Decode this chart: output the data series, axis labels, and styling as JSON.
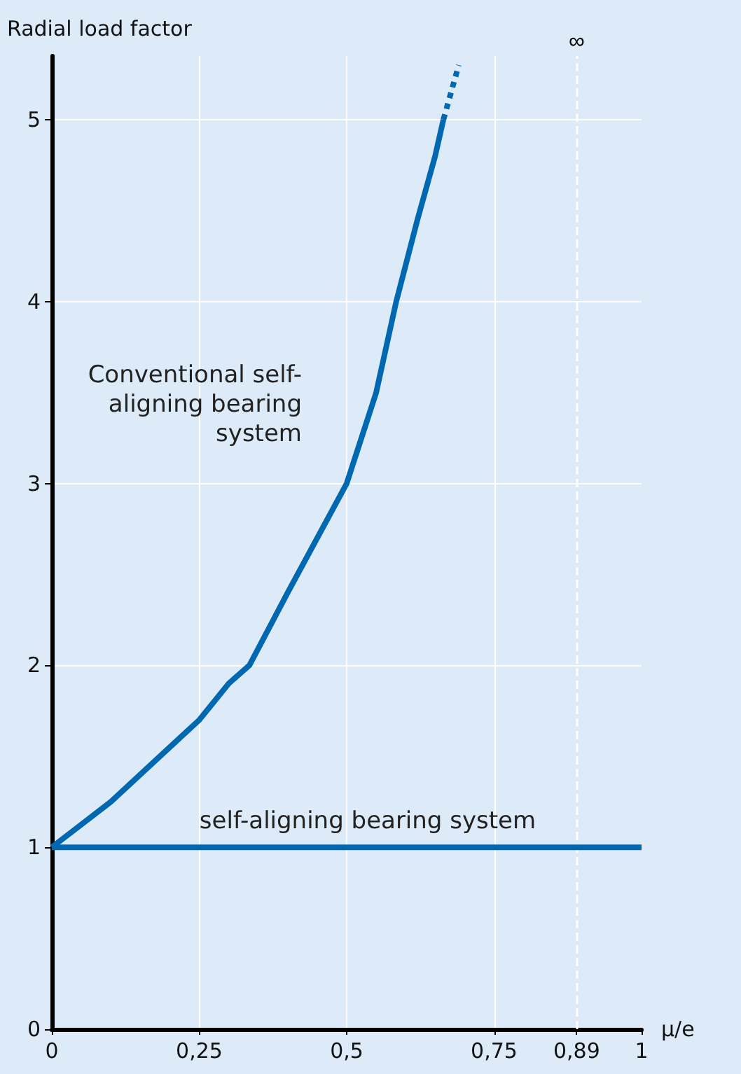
{
  "chart_data": {
    "type": "line",
    "ylabel": "Radial load factor",
    "xlabel": "μ/e",
    "xlim": [
      0,
      1
    ],
    "ylim": [
      0,
      5.35
    ],
    "xticks": [
      0,
      {
        "value": 0.25,
        "label": "0,25"
      },
      {
        "value": 0.5,
        "label": "0,5"
      },
      {
        "value": 0.75,
        "label": "0,75"
      },
      {
        "value": 0.89,
        "label": "0,89"
      },
      1
    ],
    "yticks": [
      0,
      1,
      2,
      3,
      4,
      5
    ],
    "grid": true,
    "marker": "none",
    "series": [
      {
        "name": "Conventional self-\naligning bearing\nsystem",
        "color": "#0067b1",
        "line_style": "solid",
        "x": [
          0,
          0.1,
          0.2,
          0.25,
          0.3,
          0.335,
          0.4,
          0.5,
          0.55,
          0.584,
          0.62,
          0.65,
          0.664
        ],
        "values": [
          1,
          1.25,
          1.55,
          1.7,
          1.9,
          2.0,
          2.4,
          3.0,
          3.5,
          4.0,
          4.45,
          4.8,
          5.0
        ]
      },
      {
        "color": "#0067b1",
        "line_style": "dotted",
        "x": [
          0.664,
          0.677,
          0.69
        ],
        "values": [
          5.0,
          5.15,
          5.3
        ]
      },
      {
        "name": "self-aligning bearing system",
        "color": "#0067b1",
        "line_style": "solid",
        "x": [
          0,
          1
        ],
        "values": [
          1,
          1
        ]
      }
    ],
    "ref_lines": [
      {
        "axis": "x",
        "value": 0.89,
        "label": "∞",
        "color": "#ffffff",
        "line_style": "dashed"
      }
    ]
  }
}
